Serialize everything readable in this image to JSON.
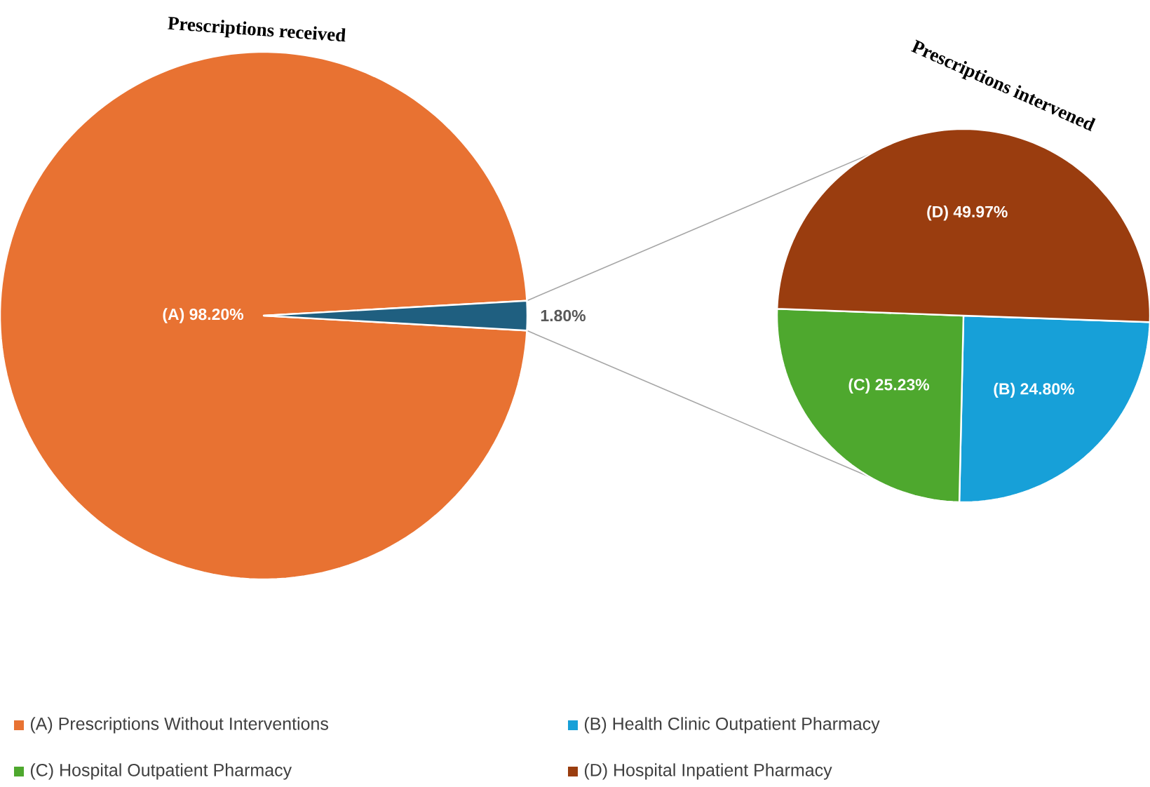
{
  "chart_data": [
    {
      "type": "pie",
      "title": "Prescriptions received",
      "categories": [
        "(A) Prescriptions Without Interventions",
        null
      ],
      "values": [
        98.2,
        1.8
      ],
      "colors": [
        "#e87232",
        "#1f5f80"
      ],
      "value_labels": [
        "(A) 98.20%",
        "1.80%"
      ],
      "legend": "bottom"
    },
    {
      "type": "pie",
      "title": "Prescriptions intervened",
      "categories": [
        "(B) Health Clinic Outpatient Pharmacy",
        "(C) Hospital Outpatient Pharmacy",
        "(D) Hospital Inpatient Pharmacy"
      ],
      "values": [
        24.8,
        25.23,
        49.97
      ],
      "colors": [
        "#17a0d8",
        "#4ea82e",
        "#9a3d0f"
      ],
      "value_labels": [
        "(B) 24.80%",
        "(C) 25.23%",
        "(D) 49.97%"
      ],
      "legend": "bottom"
    }
  ]
}
